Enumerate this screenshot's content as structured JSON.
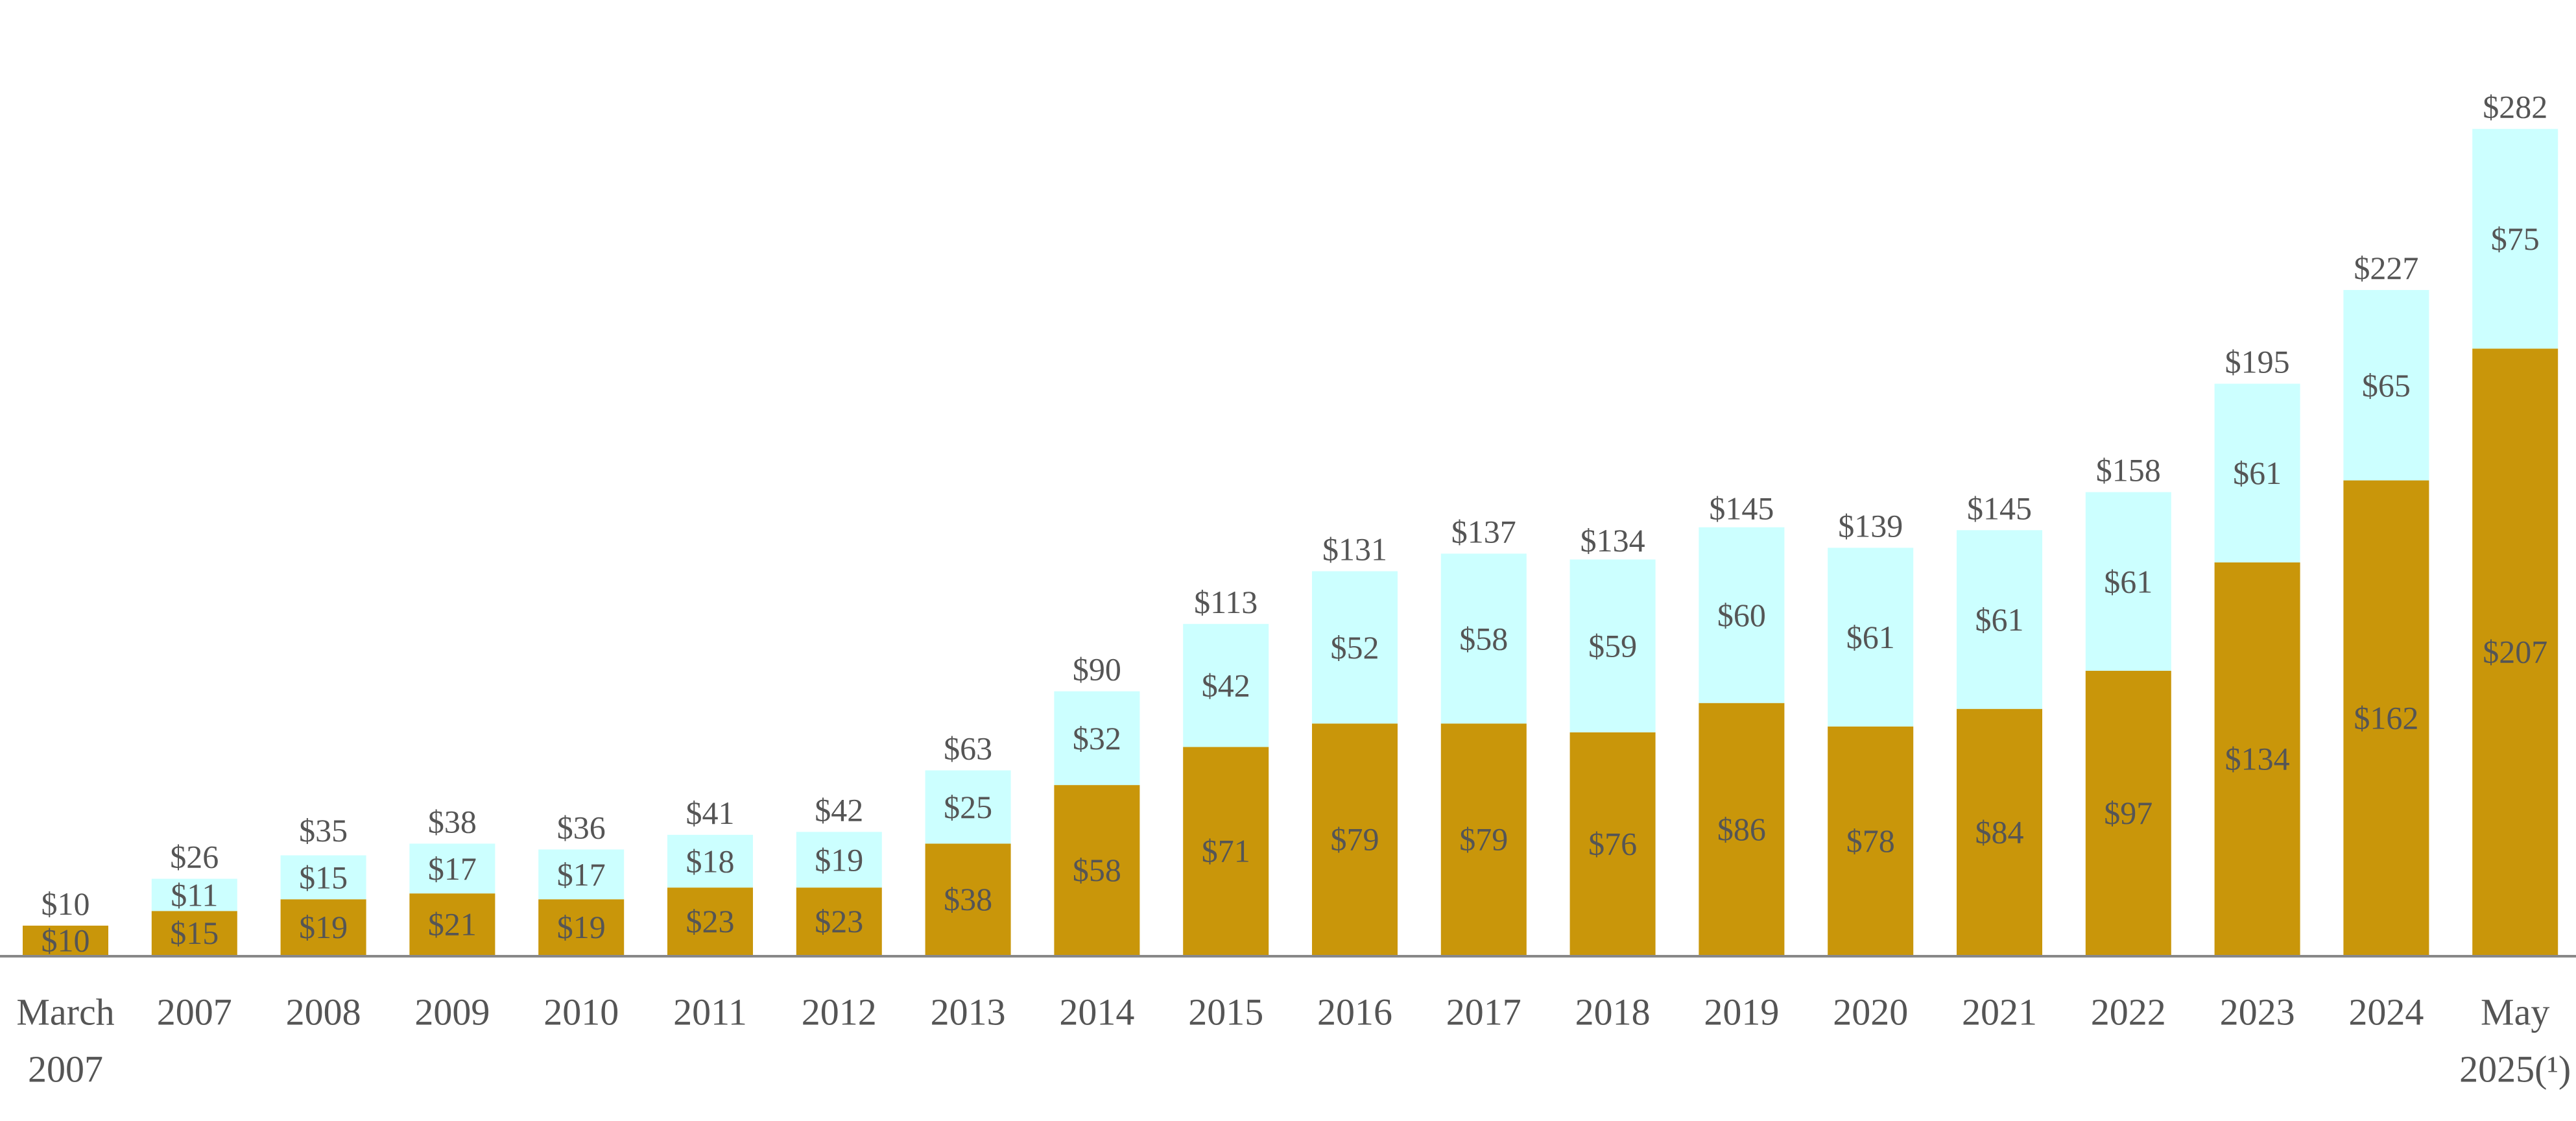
{
  "chart_data": {
    "type": "bar",
    "stacked": true,
    "title": "",
    "xlabel": "",
    "ylabel": "",
    "ylim": [
      0,
      295
    ],
    "grid": false,
    "legend": "none",
    "categories": [
      [
        "March",
        "2007"
      ],
      [
        "2007"
      ],
      [
        "2008"
      ],
      [
        "2009"
      ],
      [
        "2010"
      ],
      [
        "2011"
      ],
      [
        "2012"
      ],
      [
        "2013"
      ],
      [
        "2014"
      ],
      [
        "2015"
      ],
      [
        "2016"
      ],
      [
        "2017"
      ],
      [
        "2018"
      ],
      [
        "2019"
      ],
      [
        "2020"
      ],
      [
        "2021"
      ],
      [
        "2022"
      ],
      [
        "2023"
      ],
      [
        "2024"
      ],
      [
        "May",
        "2025(¹)"
      ]
    ],
    "series": [
      {
        "color": "#c9960a",
        "values": [
          10,
          15,
          19,
          21,
          19,
          23,
          23,
          38,
          58,
          71,
          79,
          79,
          76,
          86,
          78,
          84,
          97,
          134,
          162,
          207
        ],
        "labels": [
          "$10",
          "$15",
          "$19",
          "$21",
          "$19",
          "$23",
          "$23",
          "$38",
          "$58",
          "$71",
          "$79",
          "$79",
          "$76",
          "$86",
          "$78",
          "$84",
          "$97",
          "$134",
          "$162",
          "$207"
        ]
      },
      {
        "color": "#ccffff",
        "values": [
          0,
          11,
          15,
          17,
          17,
          18,
          19,
          25,
          32,
          42,
          52,
          58,
          59,
          60,
          61,
          61,
          61,
          61,
          65,
          75
        ],
        "labels": [
          "",
          "$11",
          "$15",
          "$17",
          "$17",
          "$18",
          "$19",
          "$25",
          "$32",
          "$42",
          "$52",
          "$58",
          "$59",
          "$60",
          "$61",
          "$61",
          "$61",
          "$61",
          "$65",
          "$75"
        ]
      }
    ],
    "totals": [
      10,
      26,
      35,
      38,
      36,
      41,
      42,
      63,
      90,
      113,
      131,
      137,
      134,
      145,
      139,
      145,
      158,
      195,
      227,
      282
    ],
    "total_labels": [
      "$10",
      "$26",
      "$35",
      "$38",
      "$36",
      "$41",
      "$42",
      "$63",
      "$90",
      "$113",
      "$131",
      "$137",
      "$134",
      "$145",
      "$139",
      "$145",
      "$158",
      "$195",
      "$227",
      "$282"
    ],
    "axis_color": "#888888"
  }
}
